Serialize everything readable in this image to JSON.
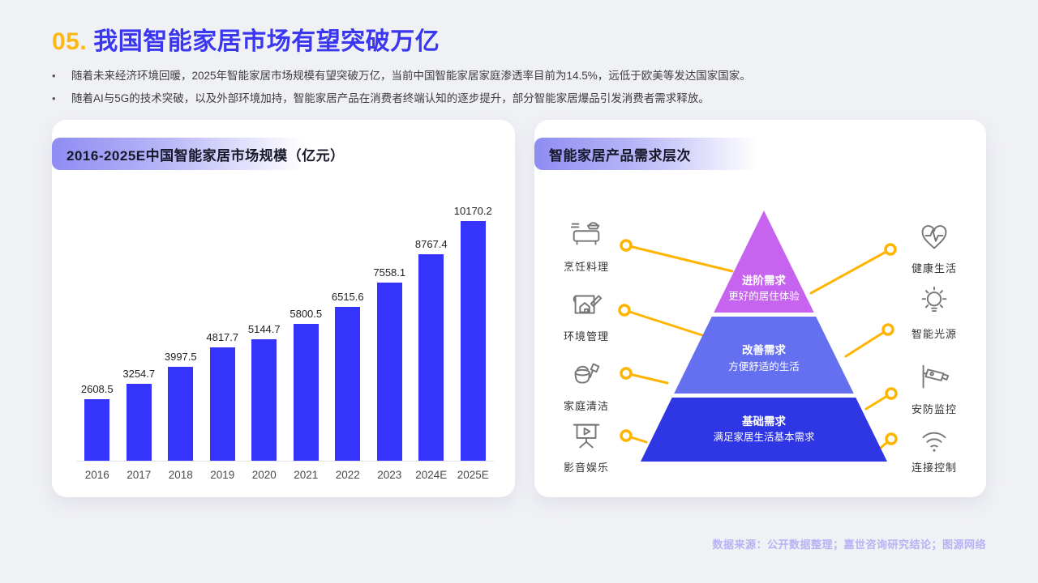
{
  "page": {
    "title_number": "05.",
    "title_text": "我国智能家居市场有望突破万亿",
    "bullets": [
      "随着未来经济环境回暖，2025年智能家居市场规模有望突破万亿，当前中国智能家居家庭渗透率目前为14.5%，远低于欧美等发达国家国家。",
      "随着AI与5G的技术突破，以及外部环境加持，智能家居产品在消费者终端认知的逐步提升，部分智能家居爆品引发消费者需求释放。"
    ],
    "footer": "数据来源：公开数据整理；嘉世咨询研究结论；图源网络"
  },
  "chart_card": {
    "header": "2016-2025E中国智能家居市场规模（亿元）"
  },
  "chart_data": {
    "type": "bar",
    "title": "2016-2025E中国智能家居市场规模（亿元）",
    "categories": [
      "2016",
      "2017",
      "2018",
      "2019",
      "2020",
      "2021",
      "2022",
      "2023",
      "2024E",
      "2025E"
    ],
    "values": [
      2608.5,
      3254.7,
      3997.5,
      4817.7,
      5144.7,
      5800.5,
      6515.6,
      7558.1,
      8767.4,
      10170.2
    ],
    "xlabel": "",
    "ylabel": "亿元",
    "ylim": [
      0,
      10500
    ],
    "grid": false,
    "value_labels": true,
    "bar_color": "#3434FD"
  },
  "pyramid_card": {
    "header": "智能家居产品需求层次",
    "tiers": [
      {
        "title": "进阶需求",
        "subtitle": "更好的居住体验",
        "color": "#C664EF"
      },
      {
        "title": "改善需求",
        "subtitle": "方便舒适的生活",
        "color": "#6570F0"
      },
      {
        "title": "基础需求",
        "subtitle": "满足家居生活基本需求",
        "color": "#2F36E4"
      }
    ],
    "left_items": [
      {
        "label": "烹饪料理",
        "icon": "cooking-icon"
      },
      {
        "label": "环境管理",
        "icon": "environment-icon"
      },
      {
        "label": "家庭清洁",
        "icon": "cleaning-icon"
      },
      {
        "label": "影音娱乐",
        "icon": "entertainment-icon"
      }
    ],
    "right_items": [
      {
        "label": "健康生活",
        "icon": "health-icon"
      },
      {
        "label": "智能光源",
        "icon": "light-icon"
      },
      {
        "label": "安防监控",
        "icon": "security-camera-icon"
      },
      {
        "label": "连接控制",
        "icon": "wifi-icon"
      }
    ],
    "connector_color": "#FFB400"
  },
  "colors": {
    "background": "#F0F1F5",
    "title_number": "#FDB813",
    "title_text": "#3B36EF",
    "bar_blue": "#3434FD",
    "pill_gradient_start": "#8F8CF3",
    "connector_yellow": "#FFB400",
    "footer_text": "#B7B3F4"
  }
}
